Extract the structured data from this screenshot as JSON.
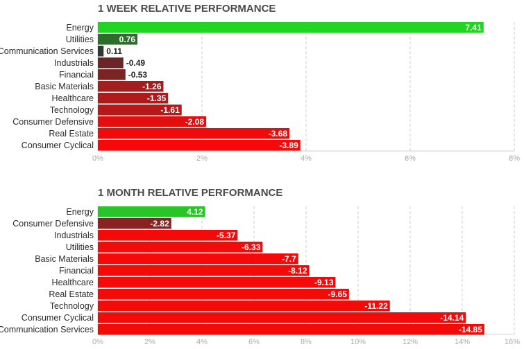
{
  "chart_data": [
    {
      "type": "bar",
      "orientation": "horizontal",
      "title": "1 WEEK RELATIVE PERFORMANCE",
      "categories": [
        "Energy",
        "Utilities",
        "Communication Services",
        "Industrials",
        "Financial",
        "Basic Materials",
        "Healthcare",
        "Technology",
        "Consumer Defensive",
        "Real Estate",
        "Consumer Cyclical"
      ],
      "values": [
        7.41,
        0.76,
        0.11,
        -0.49,
        -0.53,
        -1.26,
        -1.35,
        -1.61,
        -2.08,
        -3.68,
        -3.89
      ],
      "value_labels": [
        "7.41",
        "0.76",
        "0.11",
        "-0.49",
        "-0.53",
        "-1.26",
        "-1.35",
        "-1.61",
        "-2.08",
        "-3.68",
        "-3.89"
      ],
      "colors": [
        "#21d421",
        "#2a6e2a",
        "#2d3a2d",
        "#6a2626",
        "#7a2424",
        "#a31f1f",
        "#ad1c1c",
        "#b71818",
        "#e30f0f",
        "#f20a0a",
        "#f70909"
      ],
      "xlim": [
        0,
        8
      ],
      "ticks": [
        0,
        2,
        4,
        6,
        8
      ],
      "tick_labels": [
        "0%",
        "2%",
        "4%",
        "6%",
        "8%"
      ],
      "grid": true
    },
    {
      "type": "bar",
      "orientation": "horizontal",
      "title": "1 MONTH RELATIVE PERFORMANCE",
      "categories": [
        "Energy",
        "Consumer Defensive",
        "Industrials",
        "Utilities",
        "Basic Materials",
        "Financial",
        "Healthcare",
        "Real Estate",
        "Technology",
        "Consumer Cyclical",
        "Communication Services"
      ],
      "values": [
        4.12,
        -2.82,
        -5.37,
        -6.33,
        -7.7,
        -8.12,
        -9.13,
        -9.65,
        -11.22,
        -14.14,
        -14.85
      ],
      "value_labels": [
        "4.12",
        "-2.82",
        "-5.37",
        "-6.33",
        "-7.7",
        "-8.12",
        "-9.13",
        "-9.65",
        "-11.22",
        "-14.14",
        "-14.85"
      ],
      "colors": [
        "#28c428",
        "#8a2222",
        "#f50a0a",
        "#f50a0a",
        "#f50a0a",
        "#f50a0a",
        "#f50a0a",
        "#f50a0a",
        "#f50a0a",
        "#f50a0a",
        "#f50a0a"
      ],
      "xlim": [
        0,
        16
      ],
      "ticks": [
        0,
        2,
        4,
        6,
        8,
        10,
        12,
        14,
        16
      ],
      "tick_labels": [
        "0%",
        "2%",
        "4%",
        "6%",
        "8%",
        "10%",
        "12%",
        "14%",
        "16%"
      ],
      "grid": true
    }
  ]
}
